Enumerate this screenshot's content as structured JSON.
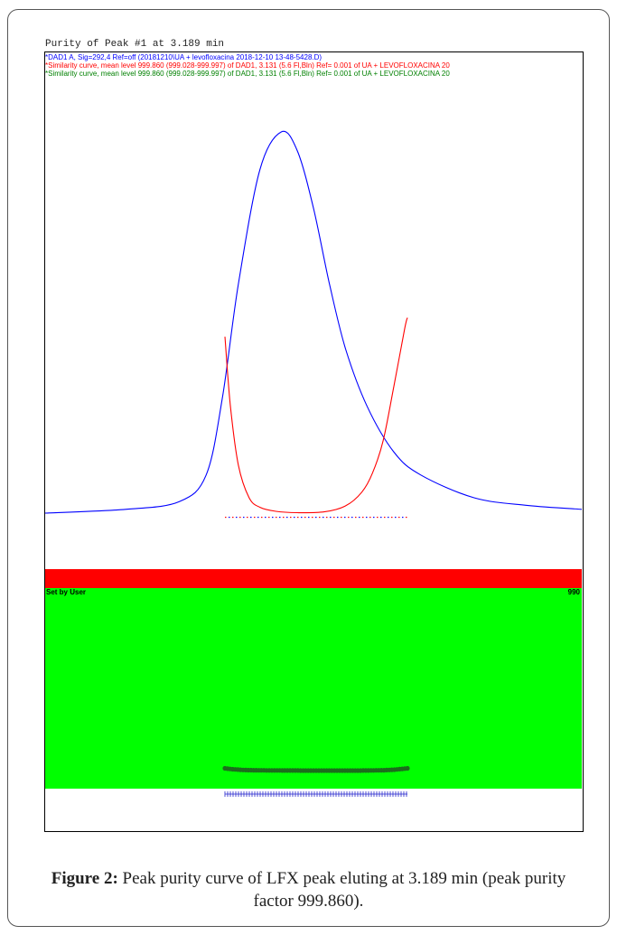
{
  "chart_title": "Purity of Peak #1 at 3.189 min",
  "legend": [
    {
      "text": "*DAD1 A, Sig=292,4 Ref=off (20181210\\UA + levofloxacina 2018-12-10 13-48-5428.D)",
      "color": "#0000ff"
    },
    {
      "text": "*Similarity curve, mean level 999.860 (999.028-999.997) of DAD1, 3.131 (5.6 Fl,Bln) Ref= 0.001 of UA + LEVOFLOXACINA 20",
      "color": "#ff0000"
    },
    {
      "text": "*Similarity curve, mean level 999.860 (999.028-999.997) of DAD1, 3.131 (5.6 Fl,Bln) Ref= 0.001 of UA + LEVOFLOXACINA 20",
      "color": "#008000"
    }
  ],
  "band": {
    "left_label": "Set by User",
    "right_label": "990",
    "top_color": "#ff0000",
    "bottom_color": "#00ff00"
  },
  "caption": {
    "label": "Figure 2:",
    "text": " Peak purity curve of LFX peak eluting at 3.189 min (peak purity factor 999.860)."
  },
  "chart_data": {
    "type": "line",
    "title": "Purity of Peak #1 at 3.189 min",
    "series": [
      {
        "name": "*DAD1 A, Sig=292,4 Ref=off (20181210\\UA + levofloxacina 2018-12-10 13-48-5428.D)",
        "color": "#0000ff",
        "shape": "asymmetric peak (chromatogram signal)",
        "x": [
          0.0,
          0.15,
          0.25,
          0.3,
          0.33,
          0.36,
          0.4,
          0.44,
          0.47,
          0.5,
          0.53,
          0.56,
          0.6,
          0.65,
          0.7,
          0.8,
          0.9,
          1.0
        ],
        "y": [
          0.0,
          0.01,
          0.03,
          0.1,
          0.3,
          0.6,
          0.9,
          1.0,
          0.95,
          0.8,
          0.6,
          0.43,
          0.28,
          0.16,
          0.1,
          0.04,
          0.02,
          0.01
        ]
      },
      {
        "name": "*Similarity curve, mean level 999.860 (999.028-999.997) of DAD1, 3.131 (5.6 Fl,Bln) Ref= 0.001 of UA + LEVOFLOXACINA 20",
        "color": "#ff0000",
        "shape": "U-shaped similarity curve",
        "x": [
          0.335,
          0.345,
          0.36,
          0.38,
          0.4,
          0.43,
          0.47,
          0.52,
          0.56,
          0.59,
          0.61,
          0.63,
          0.65,
          0.67,
          0.675
        ],
        "y": [
          0.65,
          0.4,
          0.18,
          0.06,
          0.025,
          0.01,
          0.005,
          0.008,
          0.03,
          0.08,
          0.15,
          0.27,
          0.47,
          0.68,
          0.72
        ]
      },
      {
        "name": "*Similarity curve, mean level 999.860 (999.028-999.997) of DAD1, 3.131 (5.6 Fl,Bln) Ref= 0.001 of UA + LEVOFLOXACINA 20",
        "color": "#008000",
        "shape": "U-shaped dotted similarity curve in threshold band",
        "x": [
          0.335,
          0.35,
          0.37,
          0.4,
          0.45,
          0.5,
          0.55,
          0.6,
          0.63,
          0.65,
          0.665,
          0.675
        ],
        "y": [
          0.12,
          0.07,
          0.035,
          0.015,
          0.005,
          0.0,
          0.0,
          0.005,
          0.02,
          0.05,
          0.09,
          0.12
        ]
      }
    ],
    "threshold": 990,
    "grid": false
  }
}
